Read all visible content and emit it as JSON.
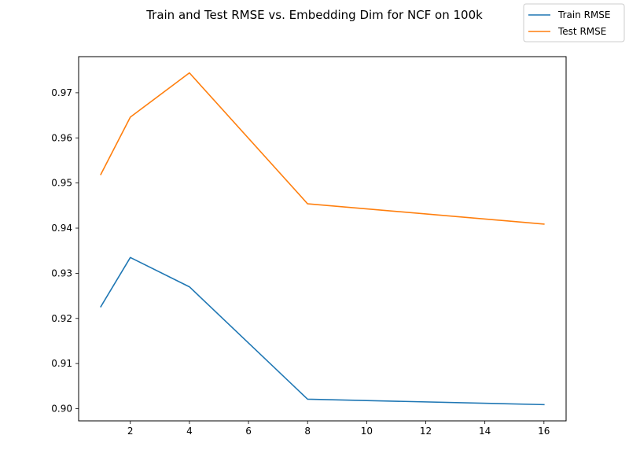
{
  "figure": {
    "title": "Train and Test RMSE vs. Embedding Dim for NCF on 100k"
  },
  "chart_data": {
    "type": "line",
    "title": "Train and Test RMSE vs. Embedding Dim for NCF on 100k",
    "xlabel": "",
    "ylabel": "",
    "x": [
      1,
      2,
      4,
      8,
      16
    ],
    "series": [
      {
        "name": "Train RMSE",
        "color": "#1f77b4",
        "values": [
          0.9226,
          0.9335,
          0.927,
          0.9021,
          0.9009
        ]
      },
      {
        "name": "Test RMSE",
        "color": "#ff7f0e",
        "values": [
          0.9519,
          0.9646,
          0.9744,
          0.9454,
          0.9409
        ]
      }
    ],
    "xlim": [
      0.25,
      16.75
    ],
    "ylim": [
      0.8973,
      0.978
    ],
    "xticks": [
      2,
      4,
      6,
      8,
      10,
      12,
      14,
      16
    ],
    "xtick_labels": [
      "2",
      "4",
      "6",
      "8",
      "10",
      "12",
      "14",
      "16"
    ],
    "yticks": [
      0.9,
      0.91,
      0.92,
      0.93,
      0.94,
      0.95,
      0.96,
      0.97
    ],
    "ytick_labels": [
      "0.90",
      "0.91",
      "0.92",
      "0.93",
      "0.94",
      "0.95",
      "0.96",
      "0.97"
    ],
    "grid": false,
    "legend_position": "top-right"
  }
}
